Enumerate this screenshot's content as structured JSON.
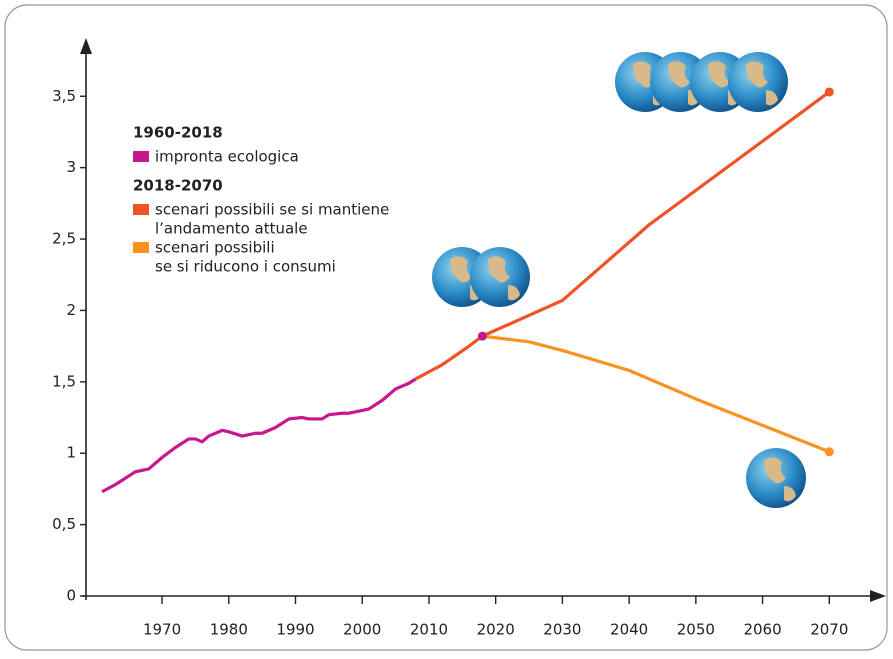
{
  "chart_data": {
    "type": "line",
    "xlim": [
      1958.6,
      2077
    ],
    "ylim": [
      0,
      3.88
    ],
    "xticks": [
      1970,
      1980,
      1990,
      2000,
      2010,
      2020,
      2030,
      2040,
      2050,
      2060,
      2070
    ],
    "yticks": [
      0,
      {
        "value": 0.5,
        "label": "0,5"
      },
      1,
      {
        "value": 1.5,
        "label": "1,5"
      },
      2,
      {
        "value": 2.5,
        "label": "2,5"
      },
      3,
      {
        "value": 3.5,
        "label": "3,5"
      }
    ],
    "legend_headers": [
      "1960-2018",
      "2018-2070"
    ],
    "series": [
      {
        "name": [
          "impronta ecologica"
        ],
        "color": "#c8178e",
        "x": [
          1961,
          1963,
          1965,
          1966,
          1968,
          1970,
          1972,
          1974,
          1975,
          1976,
          1977,
          1979,
          1980,
          1982,
          1984,
          1985,
          1987,
          1989,
          1991,
          1992,
          1994,
          1995,
          1997,
          1998,
          2000,
          2001,
          2003,
          2005,
          2007,
          2008
        ],
        "values": [
          0.73,
          0.78,
          0.84,
          0.87,
          0.89,
          0.97,
          1.04,
          1.1,
          1.1,
          1.08,
          1.12,
          1.16,
          1.15,
          1.12,
          1.14,
          1.14,
          1.18,
          1.24,
          1.25,
          1.24,
          1.24,
          1.27,
          1.28,
          1.28,
          1.3,
          1.31,
          1.37,
          1.45,
          1.49,
          1.52
        ]
      },
      {
        "name": [
          "scenari possibili se si mantiene",
          "l’andamento attuale"
        ],
        "color": "#ef5327",
        "x": [
          2008,
          2012,
          2016,
          2018,
          2030,
          2043,
          2070
        ],
        "values": [
          1.52,
          1.62,
          1.75,
          1.82,
          2.07,
          2.6,
          3.53
        ]
      },
      {
        "name": [
          "scenari possibili",
          "se si riducono i consumi"
        ],
        "color": "#f7931e",
        "x": [
          2018,
          2025,
          2030,
          2040,
          2050,
          2070
        ],
        "values": [
          1.82,
          1.78,
          1.72,
          1.58,
          1.38,
          1.01
        ]
      }
    ]
  }
}
